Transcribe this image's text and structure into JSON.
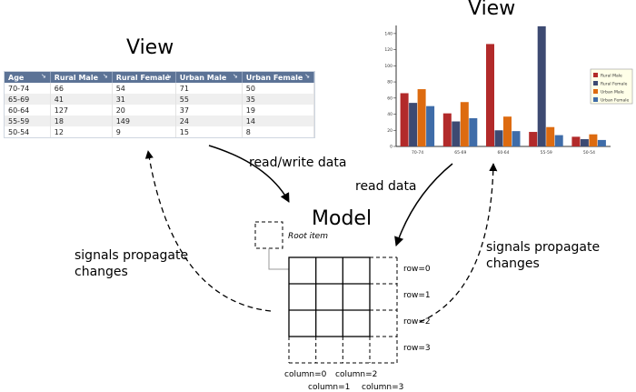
{
  "titles": {
    "table_view": "View",
    "chart_view": "View",
    "model": "Model"
  },
  "table": {
    "headers": [
      "Age",
      "Rural Male",
      "Rural Female",
      "Urban Male",
      "Urban Female"
    ],
    "rows": [
      [
        "70-74",
        "66",
        "54",
        "71",
        "50"
      ],
      [
        "65-69",
        "41",
        "31",
        "55",
        "35"
      ],
      [
        "60-64",
        "127",
        "20",
        "37",
        "19"
      ],
      [
        "55-59",
        "18",
        "149",
        "24",
        "14"
      ],
      [
        "50-54",
        "12",
        "9",
        "15",
        "8"
      ]
    ]
  },
  "chart_data": {
    "type": "bar",
    "categories": [
      "70-74",
      "65-69",
      "60-64",
      "55-59",
      "50-54"
    ],
    "series": [
      {
        "name": "Rural Male",
        "color": "#b22a2a",
        "values": [
          66,
          41,
          127,
          18,
          12
        ]
      },
      {
        "name": "Rural Female",
        "color": "#3d4a72",
        "values": [
          54,
          31,
          20,
          149,
          9
        ]
      },
      {
        "name": "Urban Male",
        "color": "#dd6b10",
        "values": [
          71,
          55,
          37,
          24,
          15
        ]
      },
      {
        "name": "Urban Female",
        "color": "#3f6ca8",
        "values": [
          50,
          35,
          19,
          14,
          8
        ]
      }
    ],
    "ylim": [
      0,
      150
    ],
    "yticks": [
      0,
      20,
      40,
      60,
      80,
      100,
      120,
      140
    ],
    "grid": false,
    "legend": "right"
  },
  "labels": {
    "read_write": "read/write data",
    "read": "read data",
    "signals_left_1": "signals propagate",
    "signals_left_2": "changes",
    "signals_right_1": "signals propagate",
    "signals_right_2": "changes",
    "root_item": "Root item"
  },
  "rows": [
    "row=0",
    "row=1",
    "row=2",
    "row=3"
  ],
  "columns": [
    "column=0",
    "column=1",
    "column=2",
    "column=3"
  ]
}
